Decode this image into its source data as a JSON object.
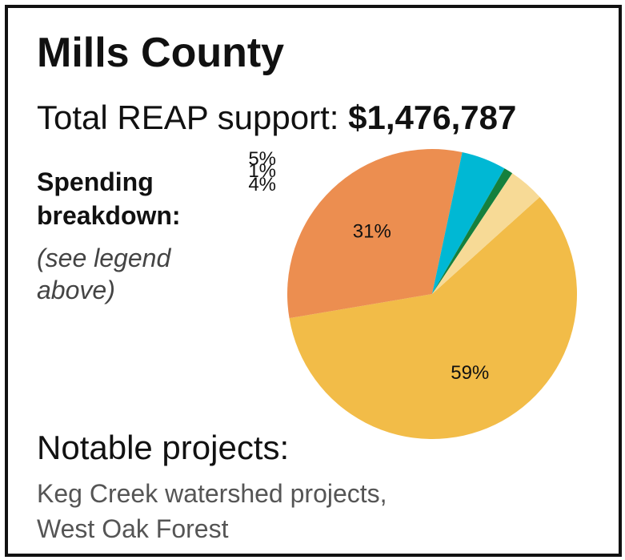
{
  "header": {
    "title": "Mills County",
    "total_label": "Total REAP support:",
    "total_amount": "$1,476,787"
  },
  "spending": {
    "heading_line1": "Spending",
    "heading_line2": "breakdown:",
    "note_line1": "(see legend",
    "note_line2": "above)"
  },
  "notable": {
    "heading": "Notable projects:",
    "line1": "Keg Creek watershed projects,",
    "line2": "West Oak Forest"
  },
  "chart_data": {
    "type": "pie",
    "slices": [
      {
        "label": "59%",
        "value": 59,
        "color": "#F2BC48"
      },
      {
        "label": "31%",
        "value": 31,
        "color": "#EC8E50"
      },
      {
        "label": "5%",
        "value": 5,
        "color": "#00B8D4"
      },
      {
        "label": "1%",
        "value": 1,
        "color": "#15803D"
      },
      {
        "label": "4%",
        "value": 4,
        "color": "#F7DA96"
      }
    ]
  }
}
